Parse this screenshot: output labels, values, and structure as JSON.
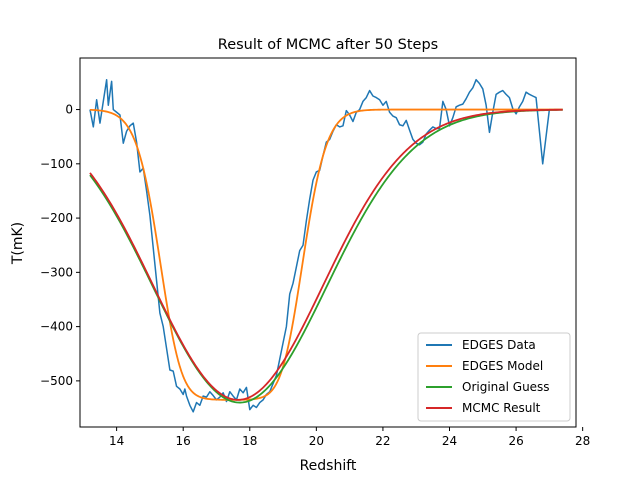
{
  "chart_data": {
    "type": "line",
    "title": "Result of MCMC after 50 Steps",
    "xlabel": "Redshift",
    "ylabel": "T(mK)",
    "xlim": [
      12.9,
      27.8
    ],
    "ylim": [
      -585,
      95
    ],
    "xticks": [
      14,
      16,
      18,
      20,
      22,
      24,
      26,
      28
    ],
    "yticks": [
      0,
      -100,
      -200,
      -300,
      -400,
      -500
    ],
    "grid": false,
    "legend_position": "lower-right",
    "series": [
      {
        "name": "EDGES Data",
        "color": "#1f77b4",
        "points": [
          [
            13.2,
            0
          ],
          [
            13.3,
            -32
          ],
          [
            13.4,
            18
          ],
          [
            13.5,
            -25
          ],
          [
            13.6,
            15
          ],
          [
            13.7,
            55
          ],
          [
            13.75,
            8
          ],
          [
            13.85,
            52
          ],
          [
            13.9,
            0
          ],
          [
            14.0,
            -5
          ],
          [
            14.1,
            -10
          ],
          [
            14.2,
            -62
          ],
          [
            14.3,
            -40
          ],
          [
            14.4,
            -30
          ],
          [
            14.5,
            -25
          ],
          [
            14.6,
            -60
          ],
          [
            14.7,
            -115
          ],
          [
            14.8,
            -108
          ],
          [
            14.9,
            -150
          ],
          [
            15.0,
            -195
          ],
          [
            15.1,
            -255
          ],
          [
            15.2,
            -315
          ],
          [
            15.3,
            -375
          ],
          [
            15.4,
            -400
          ],
          [
            15.5,
            -440
          ],
          [
            15.6,
            -480
          ],
          [
            15.7,
            -482
          ],
          [
            15.8,
            -510
          ],
          [
            15.9,
            -515
          ],
          [
            16.0,
            -525
          ],
          [
            16.05,
            -515
          ],
          [
            16.1,
            -528
          ],
          [
            16.2,
            -545
          ],
          [
            16.3,
            -557
          ],
          [
            16.4,
            -540
          ],
          [
            16.5,
            -545
          ],
          [
            16.6,
            -528
          ],
          [
            16.7,
            -530
          ],
          [
            16.8,
            -520
          ],
          [
            16.9,
            -527
          ],
          [
            17.0,
            -535
          ],
          [
            17.1,
            -530
          ],
          [
            17.2,
            -522
          ],
          [
            17.3,
            -538
          ],
          [
            17.4,
            -520
          ],
          [
            17.5,
            -528
          ],
          [
            17.6,
            -535
          ],
          [
            17.7,
            -515
          ],
          [
            17.8,
            -522
          ],
          [
            17.9,
            -512
          ],
          [
            18.0,
            -553
          ],
          [
            18.1,
            -545
          ],
          [
            18.2,
            -549
          ],
          [
            18.3,
            -540
          ],
          [
            18.4,
            -535
          ],
          [
            18.5,
            -525
          ],
          [
            18.6,
            -520
          ],
          [
            18.7,
            -505
          ],
          [
            18.8,
            -490
          ],
          [
            18.9,
            -460
          ],
          [
            19.0,
            -430
          ],
          [
            19.1,
            -400
          ],
          [
            19.2,
            -340
          ],
          [
            19.3,
            -320
          ],
          [
            19.4,
            -290
          ],
          [
            19.5,
            -260
          ],
          [
            19.6,
            -250
          ],
          [
            19.7,
            -205
          ],
          [
            19.8,
            -165
          ],
          [
            19.9,
            -130
          ],
          [
            20.0,
            -115
          ],
          [
            20.1,
            -112
          ],
          [
            20.2,
            -85
          ],
          [
            20.3,
            -60
          ],
          [
            20.4,
            -55
          ],
          [
            20.5,
            -40
          ],
          [
            20.6,
            -28
          ],
          [
            20.7,
            -32
          ],
          [
            20.8,
            -30
          ],
          [
            20.9,
            -2
          ],
          [
            21.0,
            -10
          ],
          [
            21.1,
            -22
          ],
          [
            21.2,
            -5
          ],
          [
            21.3,
            0
          ],
          [
            21.4,
            15
          ],
          [
            21.5,
            22
          ],
          [
            21.6,
            35
          ],
          [
            21.7,
            25
          ],
          [
            21.8,
            22
          ],
          [
            21.9,
            18
          ],
          [
            22.0,
            8
          ],
          [
            22.1,
            15
          ],
          [
            22.2,
            -5
          ],
          [
            22.3,
            -12
          ],
          [
            22.4,
            -15
          ],
          [
            22.5,
            -28
          ],
          [
            22.6,
            -30
          ],
          [
            22.7,
            -20
          ],
          [
            22.8,
            -38
          ],
          [
            22.9,
            -55
          ],
          [
            23.0,
            -62
          ],
          [
            23.1,
            -65
          ],
          [
            23.2,
            -60
          ],
          [
            23.3,
            -45
          ],
          [
            23.4,
            -38
          ],
          [
            23.5,
            -32
          ],
          [
            23.6,
            -35
          ],
          [
            23.7,
            -35
          ],
          [
            23.8,
            15
          ],
          [
            23.9,
            0
          ],
          [
            24.0,
            -30
          ],
          [
            24.1,
            -15
          ],
          [
            24.2,
            5
          ],
          [
            24.3,
            8
          ],
          [
            24.4,
            10
          ],
          [
            24.5,
            20
          ],
          [
            24.6,
            32
          ],
          [
            24.7,
            40
          ],
          [
            24.8,
            55
          ],
          [
            24.9,
            48
          ],
          [
            25.0,
            38
          ],
          [
            25.1,
            8
          ],
          [
            25.2,
            -42
          ],
          [
            25.3,
            -5
          ],
          [
            25.4,
            28
          ],
          [
            25.5,
            32
          ],
          [
            25.6,
            35
          ],
          [
            25.7,
            28
          ],
          [
            25.8,
            22
          ],
          [
            25.9,
            2
          ],
          [
            26.0,
            -8
          ],
          [
            26.1,
            5
          ],
          [
            26.2,
            15
          ],
          [
            26.3,
            32
          ],
          [
            26.4,
            28
          ],
          [
            26.5,
            25
          ],
          [
            26.6,
            22
          ],
          [
            26.8,
            -100
          ],
          [
            27.0,
            0
          ],
          [
            27.2,
            0
          ],
          [
            27.4,
            0
          ]
        ]
      },
      {
        "name": "EDGES Model",
        "color": "#ff7f0e",
        "model": {
          "center": 17.45,
          "amplitude": 535,
          "tau": 7,
          "width": 4.35
        },
        "x_range": [
          13.2,
          27.4
        ]
      },
      {
        "name": "Original Guess",
        "color": "#2ca02c",
        "gaussian": {
          "center": 17.7,
          "amplitude": 540,
          "sigma": 2.6
        },
        "x_range": [
          13.2,
          27.4
        ]
      },
      {
        "name": "MCMC Result",
        "color": "#d62728",
        "gaussian": {
          "center": 17.65,
          "amplitude": 535,
          "sigma": 2.55
        },
        "x_range": [
          13.2,
          27.4
        ]
      }
    ]
  }
}
